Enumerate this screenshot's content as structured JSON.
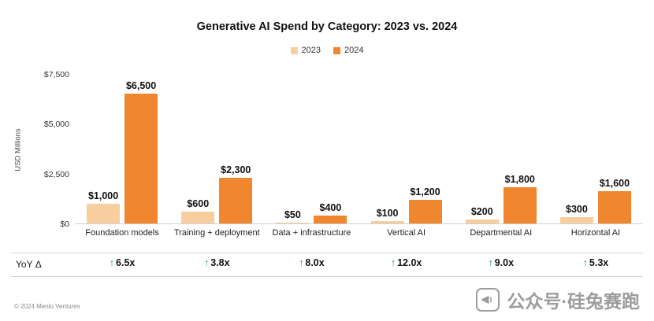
{
  "chart_data": {
    "type": "bar",
    "title": "Generative AI Spend by Category: 2023 vs. 2024",
    "ylabel": "USD Millions",
    "ylim": [
      0,
      7500
    ],
    "yticks": [
      {
        "value": 0,
        "label": "$0"
      },
      {
        "value": 2500,
        "label": "$2,500"
      },
      {
        "value": 5000,
        "label": "$5,000"
      },
      {
        "value": 7500,
        "label": "$7,500"
      }
    ],
    "categories": [
      "Foundation models",
      "Training + deployment",
      "Data + infrastructure",
      "Vertical AI",
      "Departmental AI",
      "Horizontal AI"
    ],
    "series": [
      {
        "name": "2023",
        "color": "#F8CE9E",
        "values": [
          1000,
          600,
          50,
          100,
          200,
          300
        ],
        "labels": [
          "$1,000",
          "$600",
          "$50",
          "$100",
          "$200",
          "$300"
        ]
      },
      {
        "name": "2024",
        "color": "#F0862D",
        "values": [
          6500,
          2300,
          400,
          1200,
          1800,
          1600
        ],
        "labels": [
          "$6,500",
          "$2,300",
          "$400",
          "$1,200",
          "$1,800",
          "$1,600"
        ]
      }
    ],
    "legend_position": "top",
    "grid": false
  },
  "yoy": {
    "label": "YoY Δ",
    "arrow": "↑",
    "arrow_color": "#21A04B",
    "values": [
      "6.5x",
      "3.8x",
      "8.0x",
      "12.0x",
      "9.0x",
      "5.3x"
    ]
  },
  "footer": {
    "copyright": "© 2024 Menlo Ventures"
  },
  "watermark": {
    "icon": "megaphone-icon",
    "text": "公众号·硅兔赛跑"
  }
}
